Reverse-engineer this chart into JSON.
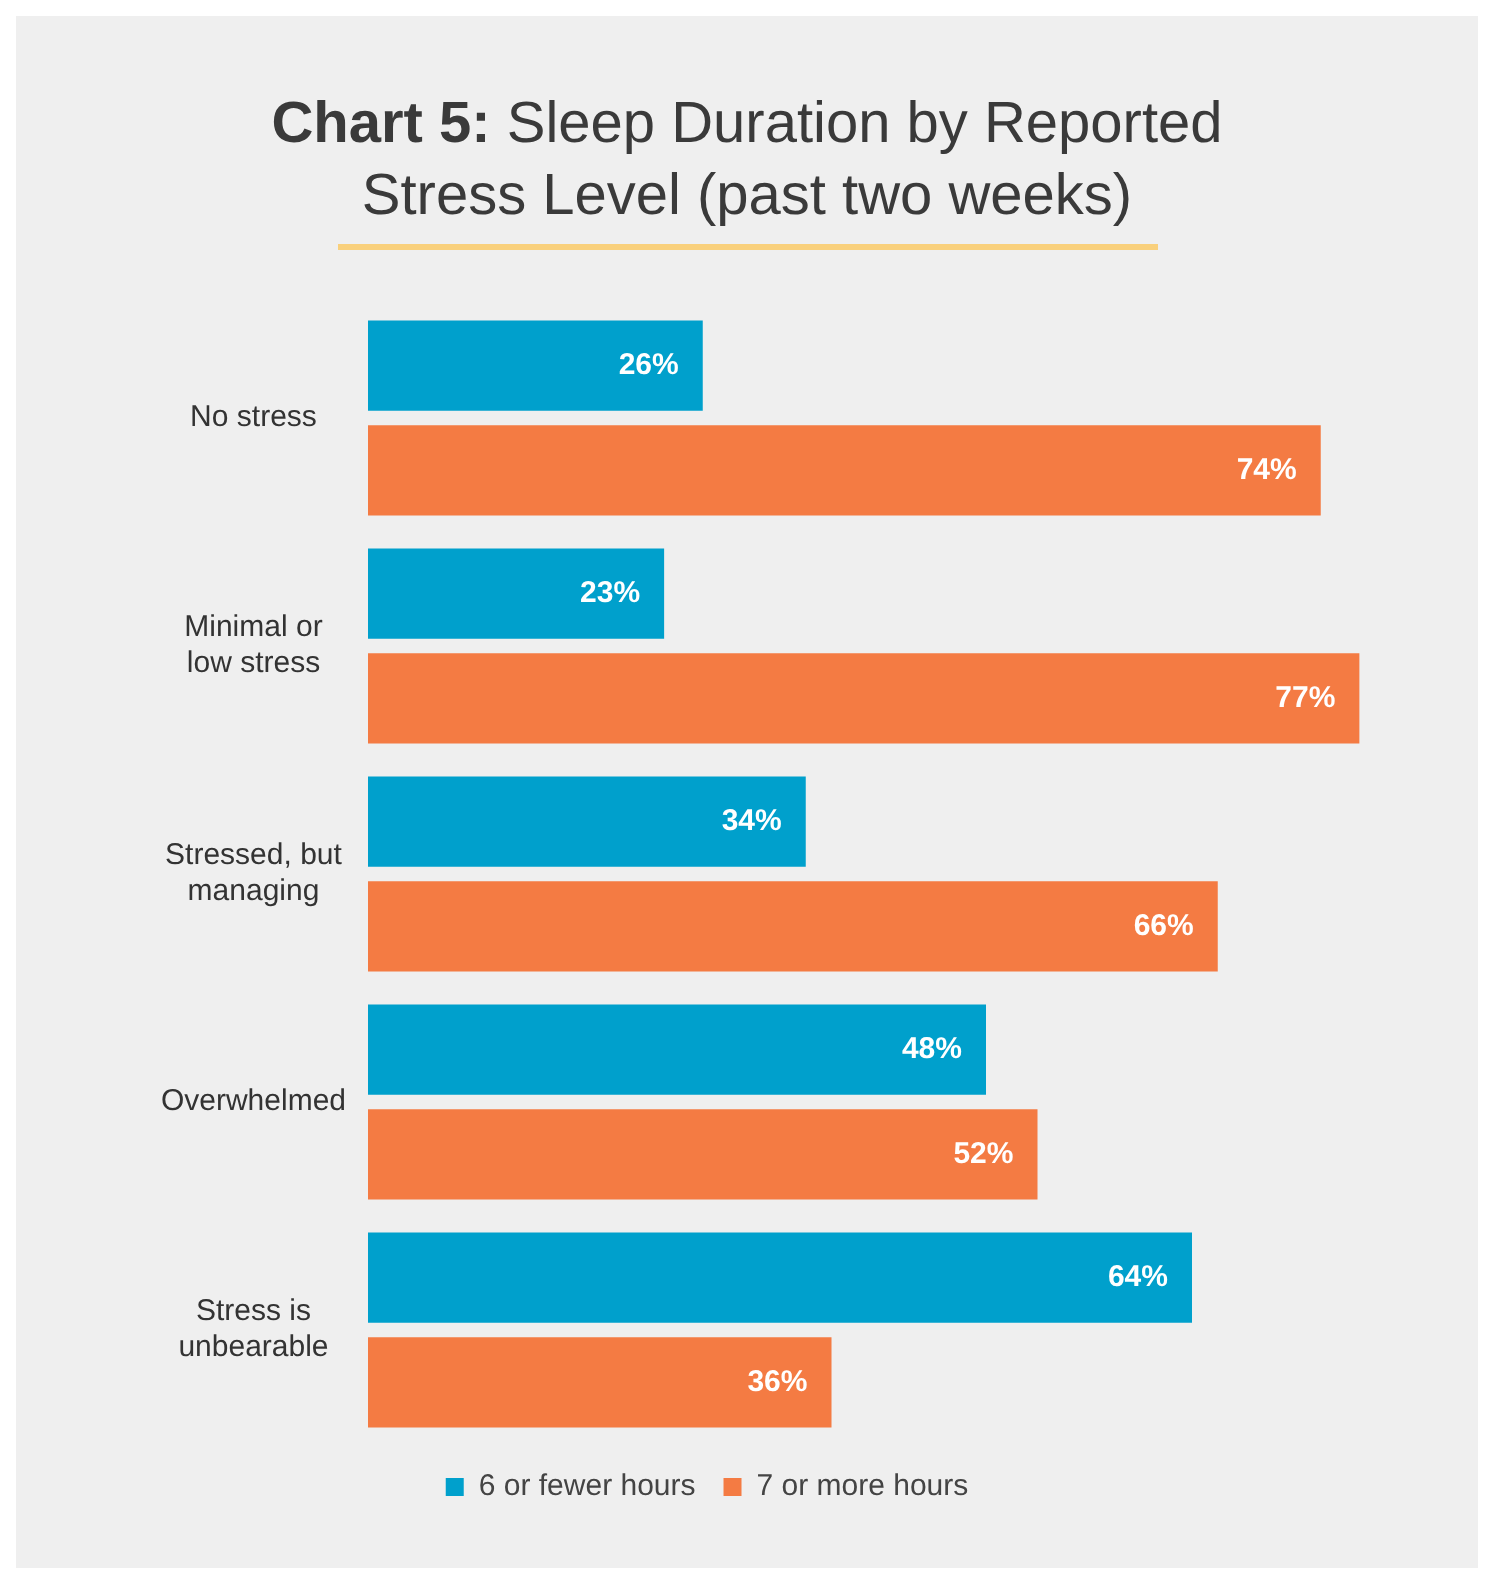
{
  "chart_data": {
    "type": "bar",
    "orientation": "horizontal",
    "title": "Chart 5: Sleep Duration by Reported Stress Level (past two weeks)",
    "categories": [
      "No stress",
      "Minimal or low stress",
      "Stressed, but managing",
      "Overwhelmed",
      "Stress is unbearable"
    ],
    "series": [
      {
        "name": "6 or fewer hours",
        "color": "#00a0cc",
        "values": [
          26,
          23,
          34,
          48,
          64
        ],
        "value_labels": [
          "26%",
          "23%",
          "34%",
          "48%",
          "64%"
        ]
      },
      {
        "name": "7 or more hours",
        "color": "#f47b43",
        "values": [
          74,
          77,
          66,
          52,
          36
        ],
        "value_labels": [
          "74%",
          "77%",
          "66%",
          "52%",
          "36%"
        ]
      }
    ],
    "legend": "bottom"
  }
}
